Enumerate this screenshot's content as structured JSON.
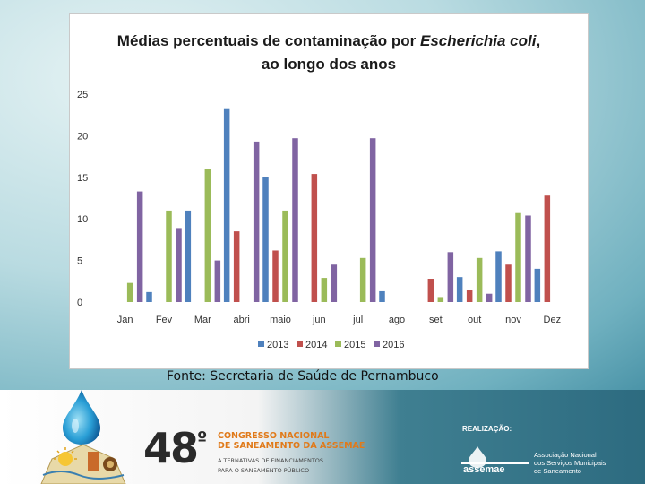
{
  "slide": {
    "source_text": "Fonte: Secretaria de Saúde de Pernambuco",
    "footer": {
      "congress_number": "48",
      "congress_ordinal": "º",
      "congress_line1": "CONGRESSO NACIONAL",
      "congress_line2": "DE SANEAMENTO DA ASSEMAE",
      "congress_line3": "A.TERNATIVAS DE FINANCIAMENTOS",
      "congress_line4": "PARA O SANEAMENTO PÚBLICO",
      "realizacao": "REALIZAÇÃO:",
      "assoc_line1": "Associação Nacional",
      "assoc_line2": "dos Serviços Municipais",
      "assoc_line3": "de Saneamento",
      "logo_text": "assemae"
    }
  },
  "chart_data": {
    "type": "bar",
    "title_line1_prefix": "Médias percentuais de contaminação por ",
    "title_line1_italic": "Escherichia coli",
    "title_line1_suffix": ",",
    "title_line2": "ao longo dos anos",
    "categories": [
      "Jan",
      "Fev",
      "Mar",
      "abri",
      "maio",
      "jun",
      "jul",
      "ago",
      "set",
      "out",
      "nov",
      "Dez"
    ],
    "ylim": [
      0,
      25
    ],
    "yticks": [
      0,
      5,
      10,
      15,
      20,
      25
    ],
    "legend_position": "bottom",
    "series": [
      {
        "name": "2013",
        "color": "#4f81bd",
        "values": [
          0,
          1.2,
          11,
          23.2,
          15,
          0,
          0,
          1.3,
          0,
          3,
          6.1,
          4
        ]
      },
      {
        "name": "2014",
        "color": "#c0504d",
        "values": [
          0,
          0,
          0,
          8.5,
          6.2,
          15.4,
          0,
          0,
          2.8,
          1.4,
          4.5,
          12.8
        ]
      },
      {
        "name": "2015",
        "color": "#9bbb59",
        "values": [
          2.3,
          11,
          16,
          0,
          11,
          2.9,
          5.3,
          0,
          0.6,
          5.3,
          10.7,
          0
        ]
      },
      {
        "name": "2016",
        "color": "#8064a2",
        "values": [
          13.3,
          8.9,
          5,
          19.3,
          19.7,
          4.5,
          19.7,
          0,
          6,
          1,
          10.4,
          0
        ]
      }
    ]
  }
}
